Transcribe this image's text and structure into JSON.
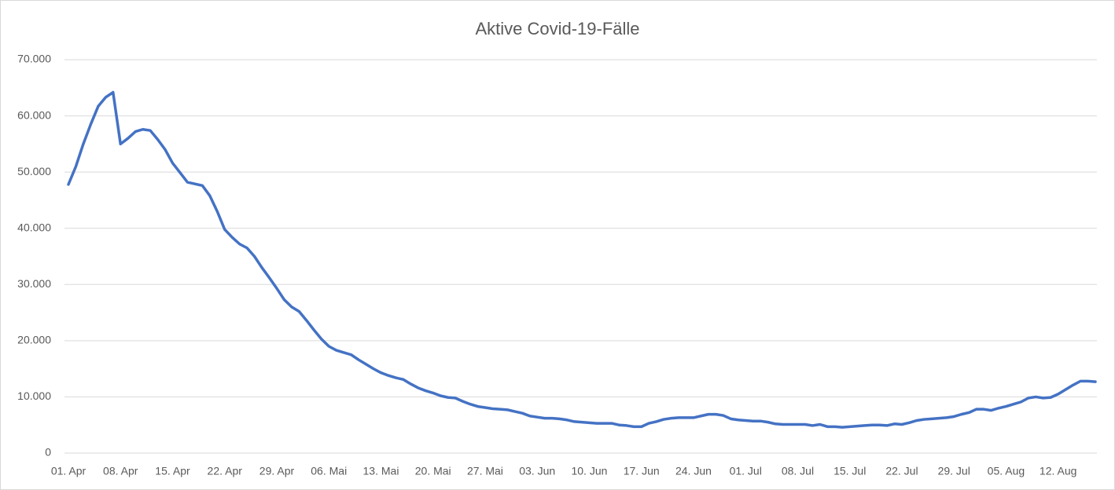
{
  "chart_data": {
    "type": "line",
    "title": "Aktive Covid-19-Fälle",
    "categories": [
      "01. Apr",
      null,
      null,
      null,
      null,
      null,
      null,
      "08. Apr",
      null,
      null,
      null,
      null,
      null,
      null,
      "15. Apr",
      null,
      null,
      null,
      null,
      null,
      null,
      "22. Apr",
      null,
      null,
      null,
      null,
      null,
      null,
      "29. Apr",
      null,
      null,
      null,
      null,
      null,
      null,
      "06. Mai",
      null,
      null,
      null,
      null,
      null,
      null,
      "13. Mai",
      null,
      null,
      null,
      null,
      null,
      null,
      "20. Mai",
      null,
      null,
      null,
      null,
      null,
      null,
      "27. Mai",
      null,
      null,
      null,
      null,
      null,
      null,
      "03. Jun",
      null,
      null,
      null,
      null,
      null,
      null,
      "10. Jun",
      null,
      null,
      null,
      null,
      null,
      null,
      "17. Jun",
      null,
      null,
      null,
      null,
      null,
      null,
      "24. Jun",
      null,
      null,
      null,
      null,
      null,
      null,
      "01. Jul",
      null,
      null,
      null,
      null,
      null,
      null,
      "08. Jul",
      null,
      null,
      null,
      null,
      null,
      null,
      "15. Jul",
      null,
      null,
      null,
      null,
      null,
      null,
      "22. Jul",
      null,
      null,
      null,
      null,
      null,
      null,
      "29. Jul",
      null,
      null,
      null,
      null,
      null,
      null,
      "05. Aug",
      null,
      null,
      null,
      null,
      null,
      null,
      "12. Aug",
      null,
      null,
      null,
      null,
      null
    ],
    "series": [
      {
        "name": "Aktive Covid-19-Fälle",
        "color": "#4472c4",
        "values": [
          47800,
          51000,
          55000,
          58500,
          61700,
          63300,
          64200,
          55000,
          56000,
          57200,
          57600,
          57400,
          55800,
          54000,
          51600,
          49900,
          48200,
          47900,
          47600,
          45800,
          43000,
          39800,
          38400,
          37200,
          36500,
          35000,
          33000,
          31200,
          29300,
          27300,
          26000,
          25200,
          23600,
          21900,
          20300,
          19000,
          18300,
          17900,
          17500,
          16600,
          15800,
          15000,
          14300,
          13800,
          13400,
          13100,
          12300,
          11600,
          11100,
          10700,
          10200,
          9900,
          9800,
          9200,
          8700,
          8300,
          8100,
          7900,
          7800,
          7700,
          7400,
          7100,
          6600,
          6400,
          6200,
          6200,
          6100,
          5900,
          5600,
          5500,
          5400,
          5300,
          5300,
          5300,
          5000,
          4900,
          4700,
          4700,
          5300,
          5600,
          6000,
          6200,
          6300,
          6300,
          6300,
          6600,
          6900,
          6900,
          6700,
          6100,
          5900,
          5800,
          5700,
          5700,
          5500,
          5200,
          5100,
          5100,
          5100,
          5100,
          4900,
          5100,
          4700,
          4700,
          4600,
          4700,
          4800,
          4900,
          5000,
          5000,
          4900,
          5200,
          5100,
          5400,
          5800,
          6000,
          6100,
          6200,
          6300,
          6500,
          6900,
          7200,
          7800,
          7800,
          7600,
          8000,
          8300,
          8700,
          9100,
          9800,
          10000,
          9800,
          9900,
          10500,
          11300,
          12100,
          12800,
          12800,
          12700
        ]
      }
    ],
    "ylim": [
      0,
      70000
    ],
    "yticks": [
      0,
      {
        "value": 10000,
        "label": "10.000"
      },
      {
        "value": 20000,
        "label": "20.000"
      },
      {
        "value": 30000,
        "label": "30.000"
      },
      {
        "value": 40000,
        "label": "40.000"
      },
      {
        "value": 50000,
        "label": "50.000"
      },
      {
        "value": 60000,
        "label": "60.000"
      },
      {
        "value": 70000,
        "label": "70.000"
      }
    ],
    "grid": true
  }
}
